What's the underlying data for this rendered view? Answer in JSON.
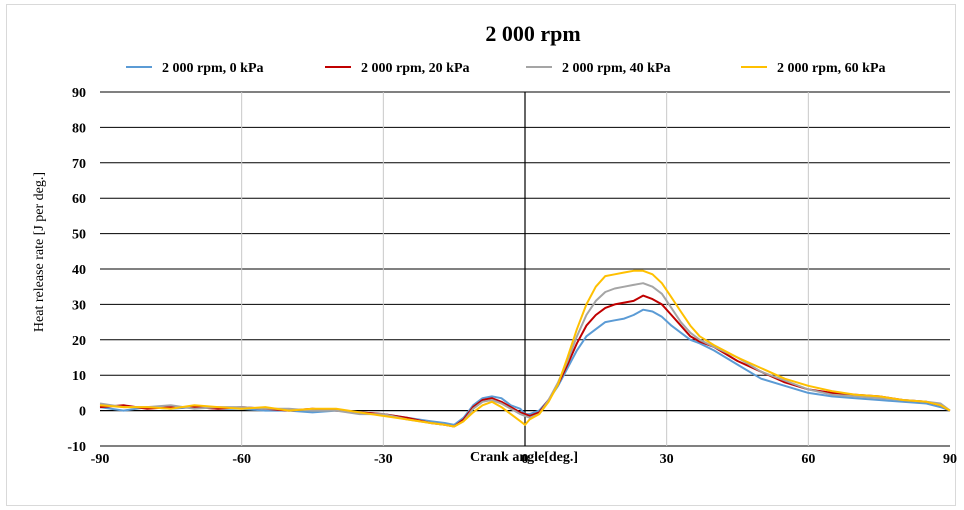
{
  "chart_data": {
    "type": "line",
    "title": "2 000 rpm",
    "xlabel": "Crank angle[deg.]",
    "ylabel": "Heat release rate [J per deg.]",
    "xlim": [
      -90,
      90
    ],
    "ylim": [
      -10,
      90
    ],
    "xticks": [
      -90,
      -60,
      -30,
      0,
      30,
      60,
      90
    ],
    "yticks": [
      -10,
      0,
      10,
      20,
      30,
      40,
      50,
      60,
      70,
      80,
      90
    ],
    "grid": true,
    "legend_position": "top",
    "x": [
      -90,
      -85,
      -80,
      -75,
      -70,
      -65,
      -60,
      -55,
      -50,
      -45,
      -40,
      -35,
      -30,
      -25,
      -20,
      -17,
      -15,
      -13,
      -11,
      -9,
      -7,
      -5,
      -3,
      -1,
      0,
      1,
      3,
      5,
      7,
      9,
      11,
      13,
      15,
      17,
      19,
      21,
      23,
      25,
      27,
      29,
      31,
      33,
      35,
      37,
      40,
      45,
      50,
      55,
      60,
      65,
      70,
      75,
      80,
      85,
      88,
      90
    ],
    "series": [
      {
        "name": "2 000 rpm, 0 kPa",
        "color": "#5b9bd5",
        "values": [
          1,
          0,
          1,
          0.5,
          1,
          0.5,
          0.5,
          0,
          0,
          -0.5,
          0,
          -0.5,
          -1,
          -2,
          -3,
          -3.5,
          -4,
          -2,
          1.5,
          3.5,
          4,
          3.5,
          1.5,
          0.5,
          -1,
          -1,
          0,
          3,
          7,
          12,
          17,
          21,
          23,
          25,
          25.5,
          26,
          27,
          28.5,
          28,
          26.5,
          24,
          22,
          20,
          19,
          17,
          13,
          9,
          7,
          5,
          4,
          3.5,
          3,
          2.5,
          2,
          1,
          0
        ]
      },
      {
        "name": "2 000 rpm, 20 kPa",
        "color": "#c00000",
        "values": [
          1,
          1.5,
          0.5,
          1,
          1,
          0.5,
          1,
          0.5,
          0,
          0.5,
          0,
          -0.5,
          -1,
          -2,
          -3.5,
          -4,
          -4.5,
          -2.5,
          1,
          3,
          3.5,
          2.5,
          1,
          -0.5,
          -1,
          -1.5,
          -0.5,
          3,
          7.5,
          13,
          19,
          24,
          27,
          29,
          30,
          30.5,
          31,
          32.5,
          31.5,
          30,
          27,
          24,
          21,
          19.5,
          18,
          14,
          11,
          8,
          6,
          5,
          4.5,
          4,
          3,
          2.5,
          1.5,
          0
        ]
      },
      {
        "name": "2 000 rpm, 40 kPa",
        "color": "#a5a5a5",
        "values": [
          2,
          1,
          1,
          1.5,
          0.5,
          1,
          1,
          0.5,
          0.5,
          0,
          0,
          -1,
          -1,
          -2.5,
          -3.5,
          -4,
          -4.5,
          -3,
          0.5,
          2.5,
          3,
          2,
          0.5,
          -1,
          -1.5,
          -2,
          -1,
          3,
          8,
          14,
          21,
          27,
          31,
          33.5,
          34.5,
          35,
          35.5,
          36,
          35,
          33,
          29,
          25,
          22,
          20,
          18,
          15,
          11,
          8.5,
          6,
          4.5,
          4,
          3.5,
          3,
          2.5,
          2,
          0
        ]
      },
      {
        "name": "2 000 rpm, 60 kPa",
        "color": "#ffc000",
        "values": [
          1.5,
          1,
          1,
          0.5,
          1.5,
          1,
          0.5,
          1,
          0,
          0.5,
          0.5,
          -0.5,
          -1.5,
          -2.5,
          -3.5,
          -4,
          -4.5,
          -3,
          -0.5,
          1.5,
          2.5,
          1,
          -1,
          -3,
          -4,
          -2.5,
          -1,
          2.5,
          7.5,
          15,
          23,
          30,
          35,
          38,
          38.5,
          39,
          39.5,
          39.5,
          38.5,
          36,
          32,
          28,
          24,
          21,
          18.5,
          15,
          12,
          9,
          7,
          5.5,
          4.5,
          4,
          3,
          2.5,
          1.5,
          0
        ]
      }
    ]
  }
}
